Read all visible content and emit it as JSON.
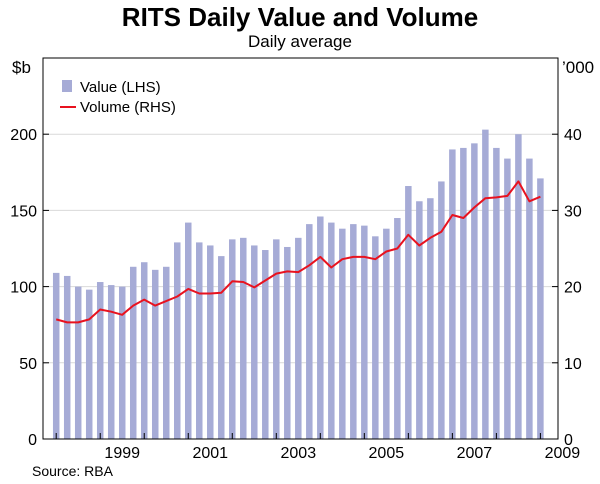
{
  "chart_data": {
    "type": "bar",
    "title": "RITS Daily Value and Volume",
    "subtitle": "Daily average",
    "left_unit": "$b",
    "right_unit": "’000",
    "source": "Source: RBA",
    "left_axis": {
      "ylim": [
        0,
        250
      ],
      "ticks": [
        0,
        50,
        100,
        150,
        200
      ]
    },
    "right_axis": {
      "ylim": [
        0,
        50
      ],
      "ticks": [
        0,
        10,
        20,
        30,
        40
      ]
    },
    "x_range": [
      1997.7,
      2009.4
    ],
    "x_ticks": [
      "1999",
      "2001",
      "2003",
      "2005",
      "2007",
      "2009"
    ],
    "x_tick_values": [
      1999,
      2001,
      2003,
      2005,
      2007,
      2009
    ],
    "legend": {
      "placement": "top-left",
      "items": [
        "Value (LHS)",
        "Volume (RHS)"
      ]
    },
    "grid": true,
    "colors": {
      "bars": "#a6abd6",
      "line": "#e8121f"
    },
    "x": [
      1998.0,
      1998.25,
      1998.5,
      1998.75,
      1999.0,
      1999.25,
      1999.5,
      1999.75,
      2000.0,
      2000.25,
      2000.5,
      2000.75,
      2001.0,
      2001.25,
      2001.5,
      2001.75,
      2002.0,
      2002.25,
      2002.5,
      2002.75,
      2003.0,
      2003.25,
      2003.5,
      2003.75,
      2004.0,
      2004.25,
      2004.5,
      2004.75,
      2005.0,
      2005.25,
      2005.5,
      2005.75,
      2006.0,
      2006.25,
      2006.5,
      2006.75,
      2007.0,
      2007.25,
      2007.5,
      2007.75,
      2008.0,
      2008.25,
      2008.5,
      2008.75,
      2009.0
    ],
    "series": [
      {
        "name": "Value (LHS)",
        "axis": "left",
        "values": [
          109,
          107,
          100,
          98,
          103,
          101,
          100,
          113,
          116,
          111,
          113,
          129,
          142,
          129,
          127,
          120,
          131,
          132,
          127,
          124,
          131,
          126,
          132,
          141,
          146,
          142,
          138,
          141,
          140,
          133,
          138,
          145,
          166,
          156,
          158,
          169,
          190,
          191,
          194,
          203,
          191,
          184,
          200,
          184,
          171
        ]
      },
      {
        "name": "Volume (RHS)",
        "axis": "right",
        "values": [
          15.7,
          15.3,
          15.3,
          15.7,
          17.0,
          16.7,
          16.3,
          17.5,
          18.3,
          17.5,
          18.1,
          18.7,
          19.7,
          19.1,
          19.1,
          19.2,
          20.7,
          20.6,
          19.9,
          20.8,
          21.7,
          22.0,
          21.9,
          22.8,
          23.9,
          22.5,
          23.6,
          23.9,
          23.9,
          23.6,
          24.6,
          25.0,
          26.8,
          25.4,
          26.4,
          27.2,
          29.4,
          29.0,
          30.4,
          31.6,
          31.7,
          31.9,
          33.8,
          31.2,
          31.8
        ]
      }
    ]
  }
}
